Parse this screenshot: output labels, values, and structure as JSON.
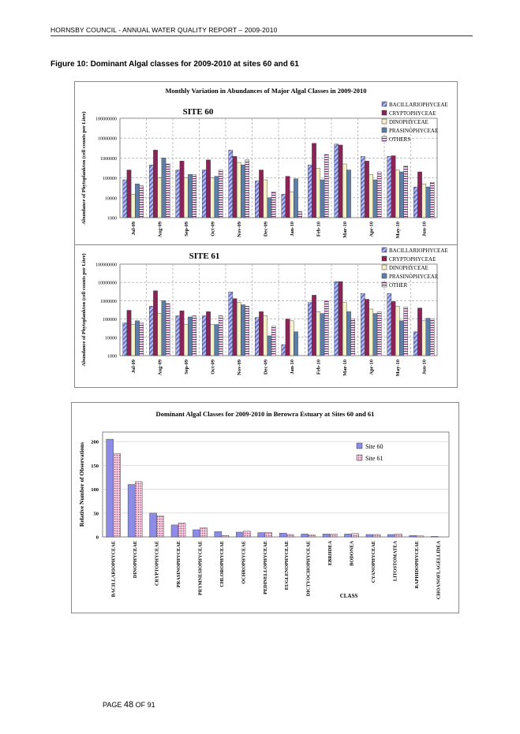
{
  "page": {
    "header": "HORNSBY COUNCIL - ANNUAL WATER QUALITY REPORT – 2009-2010",
    "figure_caption": "Figure 10: Dominant Algal classes for 2009-2010 at sites 60 and 61",
    "footer_prefix": "PAGE",
    "footer_page": "48",
    "footer_suffix": "OF 91"
  },
  "colors": {
    "BACILLARIOPHYCEAE": "#7a85d8",
    "CRYPTOPHYCEAE": "#8b2456",
    "DINOPHYCEAE": "#f4f0c8",
    "PRASINOPHYCEAE": "#5c7faa",
    "OTHERS": "#8a3a7a",
    "site60": "#8c8ce6",
    "site61": "#d9a0c0"
  },
  "chart_data": [
    {
      "type": "bar",
      "title": "Monthly Variation in Abundances of Major Algal Classes in 2009-2010",
      "subtitle": "SITE 60",
      "ylabel": "Abundance of Phytoplankton (cell counts per Litre)",
      "xlabel": "",
      "log_scale": true,
      "ylim": [
        1000,
        100000000
      ],
      "yticks": [
        "1000",
        "10000",
        "100000",
        "1000000",
        "10000000",
        "100000000"
      ],
      "grid": true,
      "legend_position": "top-right",
      "categories": [
        "Jul-09",
        "Aug-09",
        "Sep-09",
        "Oct-09",
        "Nov-09",
        "Dec-09",
        "Jan-10",
        "Feb-10",
        "Mar-10",
        "Apr-10",
        "May-10",
        "Jun-10"
      ],
      "series": [
        {
          "name": "BACILLARIOPHYCEAE",
          "values": [
            80000,
            450000,
            250000,
            250000,
            2500000,
            70000,
            15000,
            450000,
            5000000,
            1200000,
            1200000,
            35000
          ]
        },
        {
          "name": "CRYPTOPHYCEAE",
          "values": [
            250000,
            2500000,
            700000,
            800000,
            1200000,
            250000,
            120000,
            5500000,
            4500000,
            700000,
            1300000,
            200000
          ]
        },
        {
          "name": "DINOPHYCEAE",
          "values": [
            15000,
            100000,
            100000,
            100000,
            600000,
            80000,
            20000,
            300000,
            500000,
            150000,
            250000,
            50000
          ]
        },
        {
          "name": "PRASINOPHYCEAE",
          "values": [
            50000,
            1000000,
            150000,
            120000,
            450000,
            10000,
            90000,
            80000,
            250000,
            80000,
            200000,
            35000
          ]
        },
        {
          "name": "OTHERS",
          "values": [
            40000,
            500000,
            150000,
            250000,
            800000,
            20000,
            2000,
            1500000,
            1000,
            200000,
            400000,
            60000
          ]
        }
      ]
    },
    {
      "type": "bar",
      "title": "",
      "subtitle": "SITE 61",
      "ylabel": "Abundance of Phytoplankton (cell counts per Litre)",
      "xlabel": "",
      "log_scale": true,
      "ylim": [
        1000,
        100000000
      ],
      "yticks": [
        "1000",
        "10000",
        "100000",
        "1000000",
        "10000000",
        "100000000"
      ],
      "grid": true,
      "legend_position": "top-right",
      "categories": [
        "Jul-09",
        "Aug-09",
        "Sep-09",
        "Oct-09",
        "Nov-09",
        "Dec-09",
        "Jan-10",
        "Feb-10",
        "Mar-10",
        "Apr-10",
        "May-10",
        "Jun-10"
      ],
      "series": [
        {
          "name": "BACILLARIOPHYCEAE",
          "values": [
            60000,
            500000,
            150000,
            150000,
            3000000,
            120000,
            4000,
            800000,
            11000000,
            2500000,
            2500000,
            20000
          ]
        },
        {
          "name": "CRYPTOPHYCEAE",
          "values": [
            300000,
            3500000,
            280000,
            250000,
            1300000,
            250000,
            100000,
            2000000,
            11000000,
            1200000,
            900000,
            400000
          ]
        },
        {
          "name": "DINOPHYCEAE",
          "values": [
            50000,
            200000,
            50000,
            50000,
            800000,
            150000,
            80000,
            250000,
            800000,
            350000,
            500000,
            80000
          ]
        },
        {
          "name": "PRASINOPHYCEAE",
          "values": [
            80000,
            1000000,
            130000,
            50000,
            600000,
            12000,
            20000,
            200000,
            250000,
            200000,
            80000,
            110000
          ]
        },
        {
          "name": "OTHER",
          "values": [
            60000,
            700000,
            150000,
            150000,
            500000,
            40000,
            1000,
            1000000,
            100000,
            250000,
            450000,
            100000
          ]
        }
      ]
    },
    {
      "type": "bar",
      "title": "Dominant Algal Classes for 2009-2010 in Berowra Estuary at Sites 60 and 61",
      "xlabel": "CLASS",
      "ylabel": "Relative Number of Observations",
      "ylim": [
        0,
        220
      ],
      "yticks": [
        "0",
        "50",
        "100",
        "150",
        "200"
      ],
      "grid": true,
      "legend_position": "right",
      "categories": [
        "BACILLARIOPHYCEAE",
        "DINOPHYCEAE",
        "CRYPTOPHYCEAE",
        "PRASINOPHYCEAE",
        "PRYMNESIOPHYCEAE",
        "CHLOROPHYCEAE",
        "OCHROPHYCEAE",
        "PEDINELLOPHYCEAE",
        "EUGLENOPHYCEAE",
        "DICTYOCHOPHYCEAE",
        "EBRIIDEA",
        "BODONEA",
        "CYANOPHYCEAE",
        "LITOSTOMATEA",
        "RAPHIDOPHYCEAE",
        "CHOANOFLAGELLIDEA"
      ],
      "series": [
        {
          "name": "Site 60",
          "values": [
            205,
            110,
            50,
            25,
            15,
            11,
            10,
            9,
            8,
            6,
            6,
            6,
            5,
            5,
            3,
            1
          ]
        },
        {
          "name": "Site 61",
          "values": [
            175,
            116,
            44,
            29,
            19,
            3,
            12,
            9,
            5,
            4,
            6,
            7,
            5,
            6,
            2,
            0
          ]
        }
      ]
    }
  ]
}
